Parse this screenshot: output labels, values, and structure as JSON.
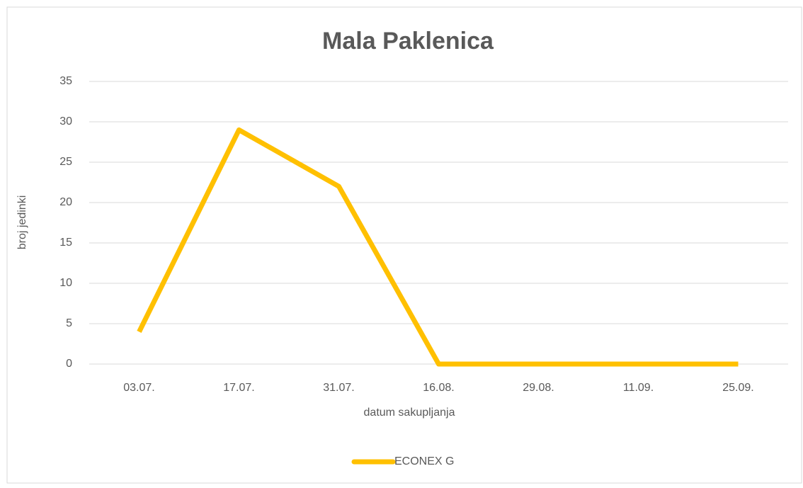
{
  "chart_data": {
    "type": "line",
    "title": "Mala Paklenica",
    "x_label": "datum sakupljanja",
    "y_label": "broj jedinki",
    "categories": [
      "03.07.",
      "17.07.",
      "31.07.",
      "16.08.",
      "29.08.",
      "11.09.",
      "25.09."
    ],
    "series": [
      {
        "name": "ECONEX G",
        "color": "#ffc000",
        "values": [
          4,
          29,
          22,
          0,
          0,
          0,
          0
        ]
      }
    ],
    "ylim": [
      0,
      35
    ],
    "yticks": [
      0,
      5,
      10,
      15,
      20,
      25,
      30,
      35
    ],
    "grid": true,
    "legend": "bottom"
  }
}
